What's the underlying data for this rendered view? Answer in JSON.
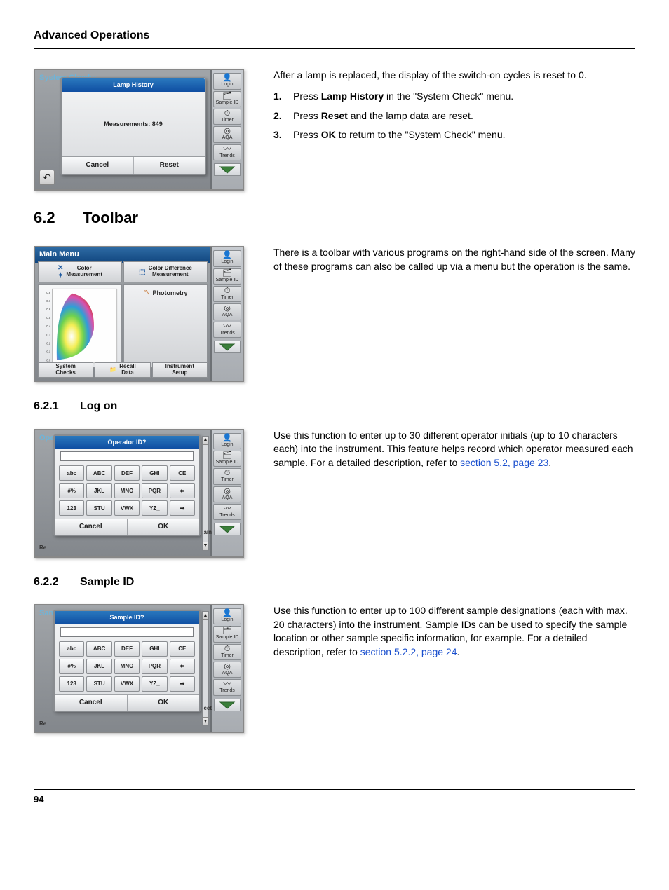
{
  "header": {
    "title": "Advanced Operations"
  },
  "footer": {
    "page_number": "94"
  },
  "sections": {
    "lamp": {
      "intro": "After a lamp is replaced, the display of the switch-on cycles is reset to 0.",
      "steps": [
        {
          "n": "1.",
          "pre": "Press ",
          "bold": "Lamp History",
          "post": " in the \"System Check\" menu."
        },
        {
          "n": "2.",
          "pre": "Press ",
          "bold": "Reset",
          "post": " and the lamp data are reset."
        },
        {
          "n": "3.",
          "pre": "Press ",
          "bold": "OK",
          "post": " to return to the \"System Check\" menu."
        }
      ]
    },
    "toolbar": {
      "num": "6.2",
      "title": "Toolbar",
      "text": "There is a toolbar with various programs on the right-hand side of the screen. Many of these programs can also be called up via a menu but the operation is the same."
    },
    "logon": {
      "num": "6.2.1",
      "title": "Log on",
      "text_pre": "Use this function to enter up to 30 different operator initials (up to 10 characters each) into the instrument. This feature helps record which operator measured each sample. For a detailed description, refer to ",
      "link": "section 5.2, page 23",
      "text_post": "."
    },
    "sampleid": {
      "num": "6.2.2",
      "title": "Sample ID",
      "text_pre": "Use this function to enter up to 100 different sample designations (each with max. 20 characters) into the instrument. Sample IDs can be used to specify  the sample location or other sample specific information, for example. For a detailed description, refer to ",
      "link": "section 5.2.2, page 24",
      "text_post": "."
    }
  },
  "device_common": {
    "side_items": [
      {
        "icon": "👤",
        "label": "Login"
      },
      {
        "icon": "🗂",
        "label": "Sample ID"
      },
      {
        "icon": "⏱",
        "label": "Timer"
      },
      {
        "icon": "◎",
        "label": "AQA"
      },
      {
        "icon": "〰",
        "label": "Trends"
      }
    ]
  },
  "lamp_device": {
    "bg_title": "System Checks",
    "panel_title": "Lamp History",
    "body": "Measurements:  849",
    "cancel": "Cancel",
    "reset": "Reset"
  },
  "mainmenu_device": {
    "title": "Main Menu",
    "tiles": {
      "color_meas": "Color\nMeasurement",
      "color_diff": "Color Difference\nMeasurement",
      "photometry": "Photometry",
      "system_checks": "System\nChecks",
      "recall_data": "Recall\nData",
      "instrument_setup": "Instrument\nSetup"
    },
    "chart": {
      "y_ticks": [
        "0.8",
        "0.7",
        "0.6",
        "0.5",
        "0.4",
        "0.3",
        "0.2",
        "0.1",
        "0.0"
      ]
    }
  },
  "operator_dialog": {
    "bg_title": "Operator ID",
    "panel_title": "Operator ID?",
    "corner": "Re",
    "right_edge": "ain",
    "keys_row1": [
      "abc",
      "ABC",
      "DEF",
      "GHI",
      "CE"
    ],
    "keys_row2": [
      "#%",
      "JKL",
      "MNO",
      "PQR",
      "⬅"
    ],
    "keys_row3": [
      "123",
      "STU",
      "VWX",
      "YZ_",
      "➡"
    ],
    "cancel": "Cancel",
    "ok": "OK"
  },
  "sample_dialog": {
    "bg_title": "Sample ID",
    "panel_title": "Sample ID?",
    "corner": "Re",
    "right_edge": "ect",
    "keys_row1": [
      "abc",
      "ABC",
      "DEF",
      "GHI",
      "CE"
    ],
    "keys_row2": [
      "#%",
      "JKL",
      "MNO",
      "PQR",
      "⬅"
    ],
    "keys_row3": [
      "123",
      "STU",
      "VWX",
      "YZ_",
      "➡"
    ],
    "cancel": "Cancel",
    "ok": "OK"
  }
}
